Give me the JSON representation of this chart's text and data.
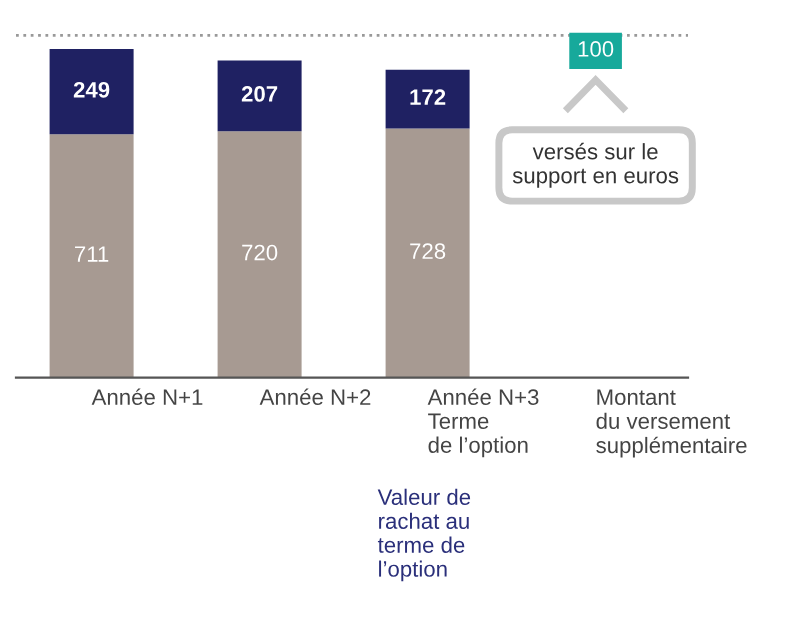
{
  "chart_data": {
    "type": "bar",
    "stacked": true,
    "data_labels": true,
    "categories": [
      "Année N+1",
      "Année N+2",
      "Année N+3\nTerme\nde l’option",
      "Montant\ndu versement\nsupplémentaire"
    ],
    "series": [
      {
        "color": "#a79a92",
        "values": [
          711,
          720,
          728,
          null
        ]
      },
      {
        "color": "#1f2162",
        "values": [
          249,
          207,
          172,
          null
        ]
      }
    ],
    "ref_lines": [
      {
        "axis": "y",
        "value": 1000,
        "color": "#999999",
        "line_style": "dotted"
      }
    ],
    "annotations": [
      "Valeur de\nrachat au\nterme de\nl’option",
      "versés sur le\nsupport en euros",
      "100"
    ],
    "grid": false,
    "legend": false
  }
}
